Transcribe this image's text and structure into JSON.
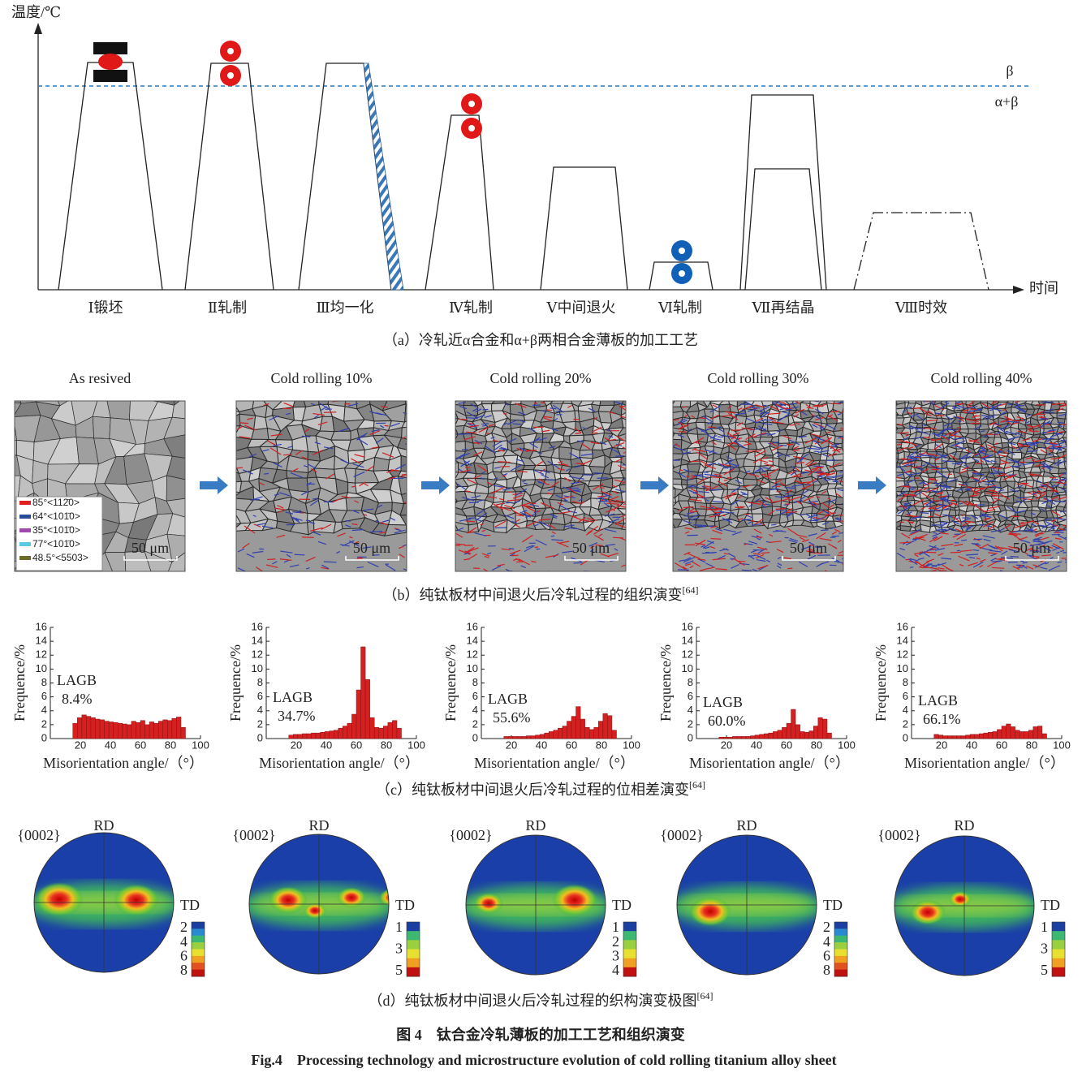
{
  "panel_a": {
    "y_axis_label": "温度/℃",
    "x_axis_label": "时间",
    "beta": "β",
    "alpha_beta": "α+β",
    "steps": [
      "Ⅰ锻坯",
      "Ⅱ轧制",
      "Ⅲ均一化",
      "Ⅳ轧制",
      "Ⅴ中间退火",
      "Ⅵ轧制",
      "Ⅶ再结晶",
      "Ⅷ时效"
    ],
    "caption": "（a）冷轧近α合金和α+β两相合金薄板的加工工艺"
  },
  "panel_b": {
    "images": [
      {
        "title": "As resived",
        "scale": "50 μm"
      },
      {
        "title": "Cold rolling 10%",
        "scale": "50 μm"
      },
      {
        "title": "Cold rolling 20%",
        "scale": "50 μm"
      },
      {
        "title": "Cold rolling 30%",
        "scale": "50 μm"
      },
      {
        "title": "Cold rolling 40%",
        "scale": "50 μm"
      }
    ],
    "legend": [
      {
        "name": "85°<112̄0>",
        "color": "#e02020"
      },
      {
        "name": "64°<101̄0>",
        "color": "#2a4a9a"
      },
      {
        "name": "35°<101̄0>",
        "color": "#a04ab0"
      },
      {
        "name": "77°<101̄0>",
        "color": "#5ac8e0"
      },
      {
        "name": "48.5°<5503>",
        "color": "#6b6b2a"
      }
    ],
    "caption": "（b）纯钛板材中间退火后冷轧过程的组织演变",
    "ref": "[64]"
  },
  "chart_data": [
    {
      "type": "histogram",
      "x_label": "Misorientation angle/（°）",
      "y_label": "Frequence/%",
      "annotation": "LAGB",
      "annotation_value": "8.4%",
      "color": "#d42020",
      "bins": [
        15,
        18,
        21,
        24,
        27,
        30,
        33,
        36,
        39,
        42,
        45,
        48,
        51,
        54,
        57,
        60,
        63,
        66,
        69,
        72,
        75,
        78,
        81,
        84,
        87,
        90
      ],
      "values": [
        2.2,
        3.0,
        3.4,
        3.2,
        3.0,
        2.8,
        2.7,
        2.5,
        2.4,
        2.3,
        2.2,
        2.1,
        2.0,
        2.5,
        2.3,
        2.6,
        2.0,
        2.4,
        2.2,
        2.5,
        2.7,
        2.6,
        2.9,
        3.1,
        1.6
      ],
      "xlim": [
        0,
        100
      ],
      "xticks": [
        20,
        40,
        60,
        80,
        100
      ],
      "ylim": [
        0,
        16
      ],
      "yticks": [
        0,
        2,
        4,
        6,
        8,
        10,
        12,
        14,
        16
      ]
    },
    {
      "type": "histogram",
      "x_label": "Misorientation angle/（°）",
      "y_label": "Frequence/%",
      "annotation": "LAGB",
      "annotation_value": "34.7%",
      "color": "#d42020",
      "bins": [
        15,
        18,
        21,
        24,
        27,
        30,
        33,
        36,
        39,
        42,
        45,
        48,
        51,
        54,
        57,
        60,
        63,
        66,
        69,
        72,
        75,
        78,
        81,
        84,
        87,
        90
      ],
      "values": [
        0.5,
        0.6,
        0.6,
        0.7,
        0.7,
        0.8,
        0.8,
        0.9,
        1.0,
        1.1,
        1.2,
        1.5,
        1.8,
        2.2,
        3.5,
        7.0,
        13.2,
        8.5,
        3.0,
        1.6,
        1.5,
        1.8,
        2.3,
        2.6,
        1.5
      ],
      "xlim": [
        0,
        100
      ],
      "xticks": [
        20,
        40,
        60,
        80,
        100
      ],
      "ylim": [
        0,
        16
      ],
      "yticks": [
        0,
        2,
        4,
        6,
        8,
        10,
        12,
        14,
        16
      ]
    },
    {
      "type": "histogram",
      "x_label": "Misorientation angle/（°）",
      "y_label": "Frequence/%",
      "annotation": "LAGB",
      "annotation_value": "55.6%",
      "color": "#d42020",
      "bins": [
        15,
        18,
        21,
        24,
        27,
        30,
        33,
        36,
        39,
        42,
        45,
        48,
        51,
        54,
        57,
        60,
        63,
        66,
        69,
        72,
        75,
        78,
        81,
        84,
        87,
        90
      ],
      "values": [
        0.3,
        0.3,
        0.3,
        0.3,
        0.3,
        0.4,
        0.4,
        0.5,
        0.6,
        0.8,
        1.0,
        1.2,
        1.5,
        1.8,
        2.5,
        3.2,
        4.6,
        2.8,
        1.6,
        1.3,
        1.6,
        2.5,
        3.6,
        3.3,
        1.2
      ],
      "xlim": [
        0,
        100
      ],
      "xticks": [
        20,
        40,
        60,
        80,
        100
      ],
      "ylim": [
        0,
        16
      ],
      "yticks": [
        0,
        2,
        4,
        6,
        8,
        10,
        12,
        14,
        16
      ]
    },
    {
      "type": "histogram",
      "x_label": "Misorientation angle/（°）",
      "y_label": "Frequence/%",
      "annotation": "LAGB",
      "annotation_value": "60.0%",
      "color": "#d42020",
      "bins": [
        15,
        18,
        21,
        24,
        27,
        30,
        33,
        36,
        39,
        42,
        45,
        48,
        51,
        54,
        57,
        60,
        63,
        66,
        69,
        72,
        75,
        78,
        81,
        84,
        87,
        90
      ],
      "values": [
        0.2,
        0.2,
        0.2,
        0.3,
        0.3,
        0.3,
        0.3,
        0.4,
        0.5,
        0.6,
        0.7,
        0.8,
        1.0,
        1.2,
        1.6,
        2.2,
        4.2,
        2.0,
        1.0,
        0.9,
        1.1,
        1.8,
        3.0,
        2.8,
        0.8
      ],
      "xlim": [
        0,
        100
      ],
      "xticks": [
        20,
        40,
        60,
        80,
        100
      ],
      "ylim": [
        0,
        16
      ],
      "yticks": [
        0,
        2,
        4,
        6,
        8,
        10,
        12,
        14,
        16
      ]
    },
    {
      "type": "histogram",
      "x_label": "Misorientation angle/（°）",
      "y_label": "Frequence/%",
      "annotation": "LAGB",
      "annotation_value": "66.1%",
      "color": "#d42020",
      "bins": [
        15,
        18,
        21,
        24,
        27,
        30,
        33,
        36,
        39,
        42,
        45,
        48,
        51,
        54,
        57,
        60,
        63,
        66,
        69,
        72,
        75,
        78,
        81,
        84,
        87,
        90
      ],
      "values": [
        0.6,
        0.5,
        0.4,
        0.4,
        0.4,
        0.4,
        0.4,
        0.5,
        0.6,
        0.6,
        0.7,
        0.8,
        0.9,
        1.0,
        1.3,
        1.8,
        2.1,
        1.7,
        1.2,
        1.0,
        1.0,
        1.2,
        1.7,
        1.8,
        0.7
      ],
      "xlim": [
        0,
        100
      ],
      "xticks": [
        20,
        40,
        60,
        80,
        100
      ],
      "ylim": [
        0,
        16
      ],
      "yticks": [
        0,
        2,
        4,
        6,
        8,
        10,
        12,
        14,
        16
      ]
    }
  ],
  "panel_c": {
    "caption": "（c）纯钛板材中间退火后冷轧过程的位相差演变",
    "ref": "[64]"
  },
  "panel_d": {
    "plots": [
      {
        "label": "{0002}",
        "rd": "RD",
        "td": "TD",
        "colorbar_ticks": [
          2,
          4,
          6,
          8
        ]
      },
      {
        "label": "{0002}",
        "rd": "RD",
        "td": "TD",
        "colorbar_ticks": [
          1,
          3,
          5
        ]
      },
      {
        "label": "{0002}",
        "rd": "RD",
        "td": "TD",
        "colorbar_ticks": [
          1,
          2,
          3,
          4
        ]
      },
      {
        "label": "{0002}",
        "rd": "RD",
        "td": "TD",
        "colorbar_ticks": [
          2,
          4,
          6,
          8
        ]
      },
      {
        "label": "{0002}",
        "rd": "RD",
        "td": "TD",
        "colorbar_ticks": [
          1,
          3,
          5
        ]
      }
    ],
    "caption": "（d）纯钛板材中间退火后冷轧过程的织构演变极图",
    "ref": "[64]"
  },
  "figure_title": "图 4　钛合金冷轧薄板的加工工艺和组织演变",
  "figure_title_en": "Fig.4　Processing technology and microstructure evolution of cold rolling titanium alloy sheet"
}
